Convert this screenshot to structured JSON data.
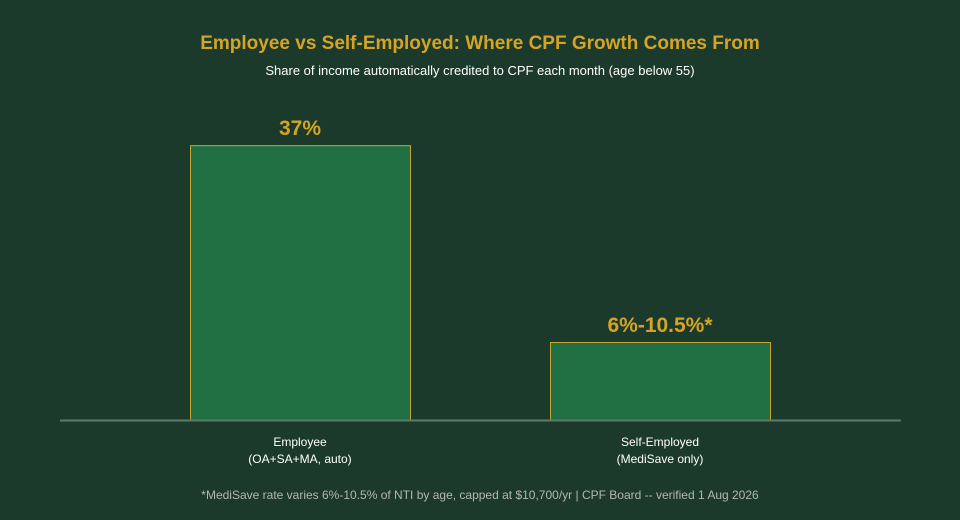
{
  "colors": {
    "background": "#1b3a2b",
    "bar_fill": "#217043",
    "bar_stroke": "#c9a632",
    "accent": "#d4a426",
    "text": "#ffffff",
    "muted_text": "#b3b8b0",
    "baseline": "#5f7a6a"
  },
  "chart_data": {
    "type": "bar",
    "title": "Employee vs Self-Employed: Where CPF Growth Comes From",
    "subtitle": "Share of income automatically credited to CPF each month (age below 55)",
    "categories": [
      [
        "Employee",
        "(OA+SA+MA, auto)"
      ],
      [
        "Self-Employed",
        "(MediSave only)"
      ]
    ],
    "values": [
      37,
      10.5
    ],
    "value_ranges": [
      null,
      [
        6,
        10.5
      ]
    ],
    "data_labels": [
      "37%",
      "6%-10.5%*"
    ],
    "ylim": [
      0,
      42
    ],
    "grid": false,
    "footnote": "*MediSave rate varies 6%-10.5% of NTI by age, capped at $10,700/yr | CPF Board -- verified 1 Aug 2026"
  }
}
